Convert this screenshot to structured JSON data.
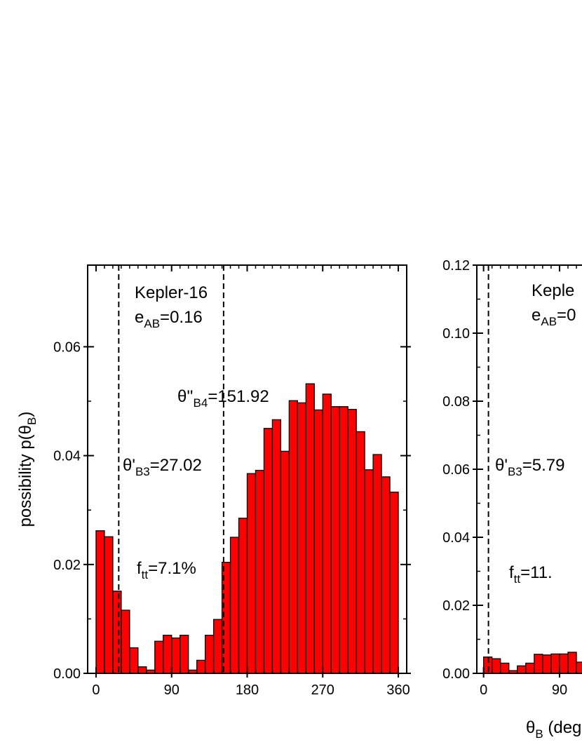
{
  "chart_data": [
    {
      "type": "histogram",
      "ylabel": {
        "text": "possibility p(θ",
        "sub": "B",
        "rest": ")"
      },
      "bins": [
        0,
        10,
        20,
        30,
        40,
        50,
        60,
        70,
        80,
        90,
        100,
        110,
        120,
        130,
        140,
        150,
        160,
        170,
        180,
        190,
        200,
        210,
        220,
        230,
        240,
        250,
        260,
        270,
        280,
        290,
        300,
        310,
        320,
        330,
        340,
        350,
        360
      ],
      "values": [
        0.0262,
        0.0251,
        0.0151,
        0.0116,
        0.0047,
        0.0012,
        0.0006,
        0.0059,
        0.007,
        0.0065,
        0.007,
        0.0006,
        0.0024,
        0.007,
        0.0099,
        0.0204,
        0.025,
        0.0285,
        0.0367,
        0.0373,
        0.045,
        0.0466,
        0.0408,
        0.0501,
        0.0497,
        0.0532,
        0.0484,
        0.0513,
        0.049,
        0.049,
        0.0485,
        0.0444,
        0.0374,
        0.0402,
        0.0361,
        0.0333
      ],
      "color": "#ff0000",
      "xlim": [
        -10,
        370
      ],
      "xticks": [
        0,
        90,
        180,
        270,
        360
      ],
      "ylim": [
        0,
        0.075
      ],
      "yticks": [
        {
          "value": 0,
          "label": "0.00"
        },
        {
          "value": 0.02,
          "label": "0.02"
        },
        {
          "value": 0.04,
          "label": "0.04"
        },
        {
          "value": 0.06,
          "label": "0.06"
        }
      ],
      "vlines": [
        27.02,
        151.92
      ],
      "annotations": [
        {
          "text": "Kepler-16"
        },
        {
          "text": "e",
          "sub": "AB",
          "rest": "=0.16"
        },
        {
          "text": "θ''",
          "sub": "B4",
          "rest": "=151.92"
        },
        {
          "text": "θ'",
          "sub": "B3",
          "rest": "=27.02"
        },
        {
          "text": "f",
          "sub": "tt",
          "rest": "=7.1%",
          "color": "#0000ff"
        }
      ]
    },
    {
      "type": "histogram",
      "xlabel": {
        "text": "θ",
        "sub": "B",
        "rest": " (deg"
      },
      "bins": [
        0,
        10,
        20,
        30,
        40,
        50,
        60,
        70,
        80,
        90,
        100,
        110,
        120
      ],
      "values": [
        0.0048,
        0.0043,
        0.003,
        0.0008,
        0.0022,
        0.003,
        0.0056,
        0.0054,
        0.0057,
        0.0057,
        0.0062,
        0.0033
      ],
      "color": "#ff0000",
      "xlim": [
        -8,
        370
      ],
      "xticks": [
        0,
        90
      ],
      "ylim": [
        0,
        0.12
      ],
      "yticks": [
        {
          "value": 0,
          "label": "0.00"
        },
        {
          "value": 0.02,
          "label": "0.02"
        },
        {
          "value": 0.04,
          "label": "0.04"
        },
        {
          "value": 0.06,
          "label": "0.06"
        },
        {
          "value": 0.08,
          "label": "0.08"
        },
        {
          "value": 0.1,
          "label": "0.10"
        },
        {
          "value": 0.12,
          "label": "0.12"
        }
      ],
      "vlines": [
        5.79
      ],
      "annotations": [
        {
          "text": "Keple"
        },
        {
          "text": "e",
          "sub": "AB",
          "rest": "=0"
        },
        {
          "text": "θ'",
          "sub": "B3",
          "rest": "=5.79"
        },
        {
          "text": "f",
          "sub": "tt",
          "rest": "=11.",
          "color": "#0000ff"
        }
      ]
    }
  ]
}
